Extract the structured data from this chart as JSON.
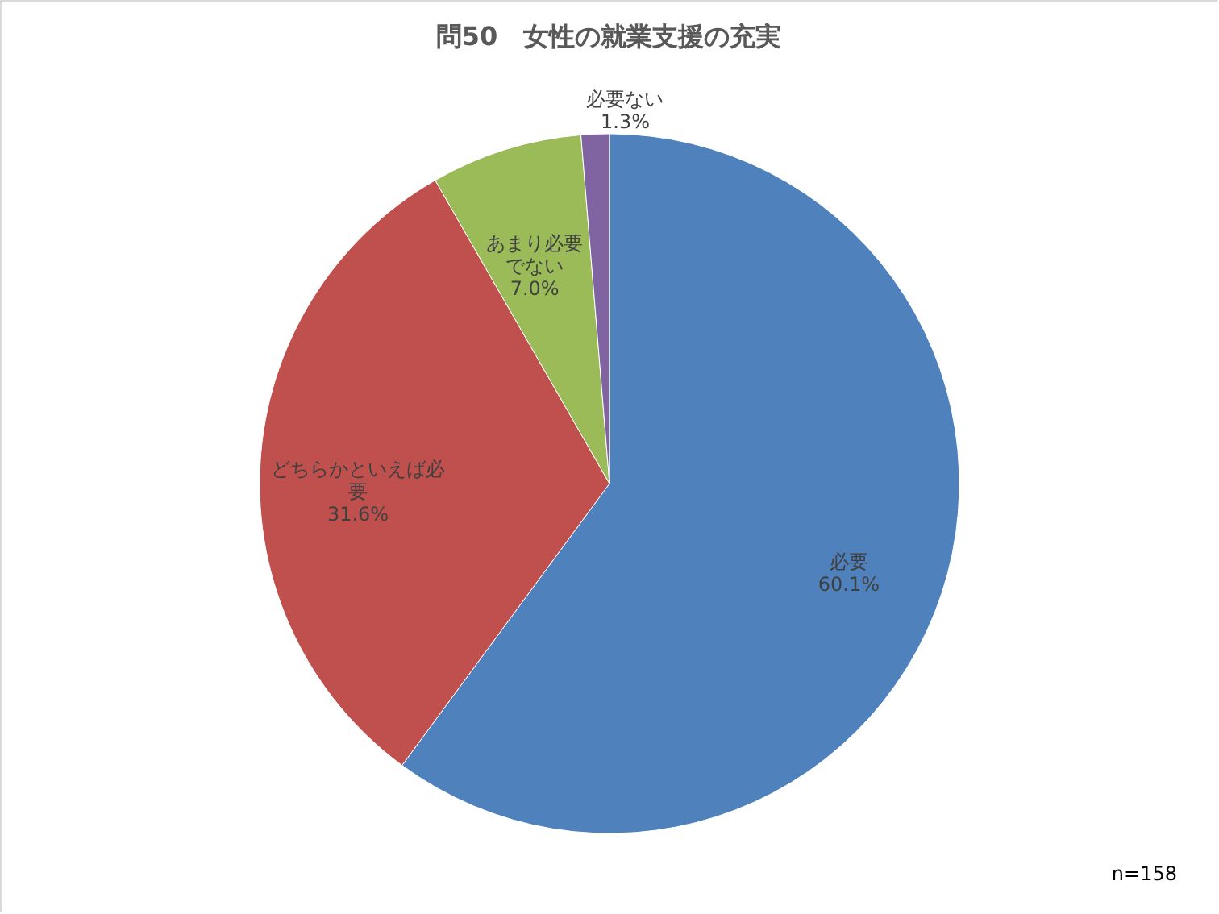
{
  "chart_data": {
    "type": "pie",
    "title": "問50　女性の就業支援の充実",
    "categories": [
      "必要",
      "どちらかといえば必要",
      "あまり必要でない",
      "必要ない"
    ],
    "values": [
      60.1,
      31.6,
      7.0,
      1.3
    ],
    "colors": [
      "#4f81bd",
      "#c0504d",
      "#9bbb59",
      "#8064a2"
    ],
    "value_labels": [
      "60.1%",
      "31.6%",
      "7.0%",
      "1.3%"
    ],
    "annotations": [
      "n=158"
    ]
  }
}
